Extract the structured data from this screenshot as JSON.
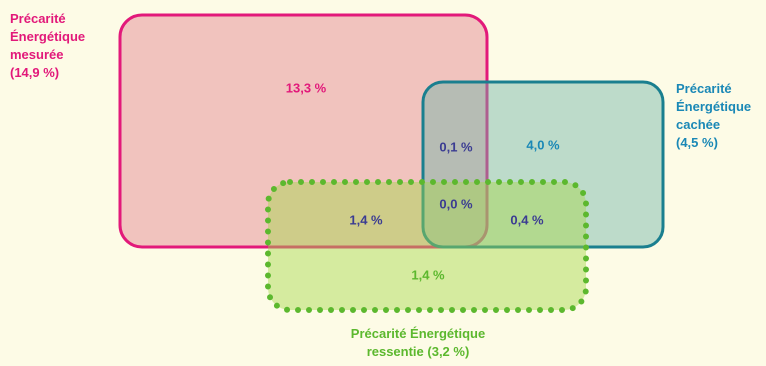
{
  "colors": {
    "background": "#fdfbe6",
    "mesuree": "#e2197a",
    "cachee": "#1a7f8f",
    "ressentie": "#5cb82e"
  },
  "sets": {
    "mesuree": {
      "label_lines": [
        "Précarité",
        "Énergétique",
        "mesurée",
        "(14,9 %)"
      ]
    },
    "cachee": {
      "label_lines": [
        "Précarité",
        "Énergétique",
        "cachée",
        "(4,5 %)"
      ]
    },
    "ressentie": {
      "label_lines": [
        "Précarité Énergétique",
        "ressentie (3,2 %)"
      ]
    }
  },
  "regions": {
    "mesuree_only": "13,3 %",
    "mesuree_cachee": "0,1 %",
    "cachee_only": "4,0 %",
    "mesuree_ressentie": "1,4 %",
    "all_three": "0,0 %",
    "cachee_ressentie": "0,4 %",
    "ressentie_only": "1,4 %"
  }
}
